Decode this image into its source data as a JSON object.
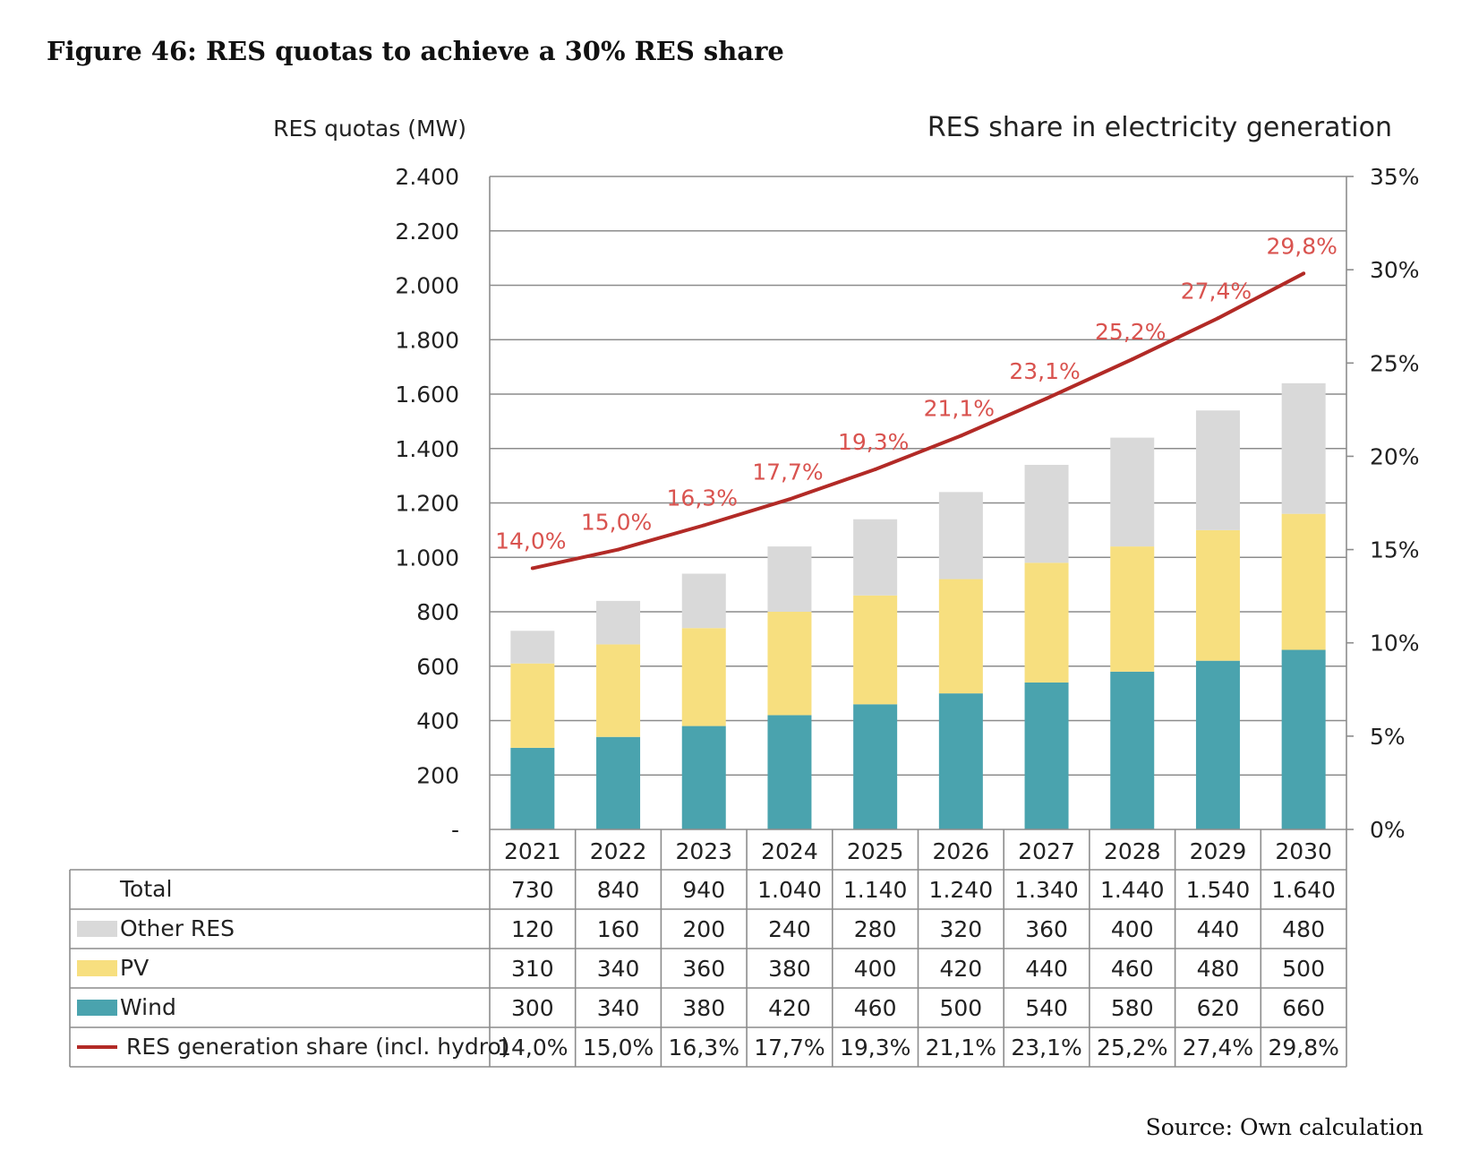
{
  "figure_title": "Figure 46: RES quotas to achieve a 30% RES share",
  "source": "Source: Own calculation",
  "chart_data": {
    "type": "bar",
    "stacked": true,
    "title": "",
    "ylabel_left": "RES quotas (MW)",
    "ylabel_right": "RES share in electricity generation",
    "categories": [
      "2021",
      "2022",
      "2023",
      "2024",
      "2025",
      "2026",
      "2027",
      "2028",
      "2029",
      "2030"
    ],
    "y_left_lim": [
      0,
      2400
    ],
    "y_left_ticks": [
      "-",
      "200",
      "400",
      "600",
      "800",
      "1.000",
      "1.200",
      "1.400",
      "1.600",
      "1.800",
      "2.000",
      "2.200",
      "2.400"
    ],
    "y_right_lim": [
      0,
      35
    ],
    "y_right_ticks": [
      "0%",
      "5%",
      "10%",
      "15%",
      "20%",
      "25%",
      "30%",
      "35%"
    ],
    "grid": true,
    "series": [
      {
        "name": "Wind",
        "kind": "bar",
        "color": "#4aa3ae",
        "values": [
          300,
          340,
          380,
          420,
          460,
          500,
          540,
          580,
          620,
          660
        ],
        "labels": [
          "300",
          "340",
          "380",
          "420",
          "460",
          "500",
          "540",
          "580",
          "620",
          "660"
        ]
      },
      {
        "name": "PV",
        "kind": "bar",
        "color": "#f7df7f",
        "values": [
          310,
          340,
          360,
          380,
          400,
          420,
          440,
          460,
          480,
          500
        ],
        "labels": [
          "310",
          "340",
          "360",
          "380",
          "400",
          "420",
          "440",
          "460",
          "480",
          "500"
        ]
      },
      {
        "name": "Other RES",
        "kind": "bar",
        "color": "#d9d9d9",
        "values": [
          120,
          160,
          200,
          240,
          280,
          320,
          360,
          400,
          440,
          480
        ],
        "labels": [
          "120",
          "160",
          "200",
          "240",
          "280",
          "320",
          "360",
          "400",
          "440",
          "480"
        ]
      },
      {
        "name": "RES generation share (incl. hydro)",
        "kind": "line",
        "axis": "right",
        "color": "#b22a26",
        "label_color": "#d9534f",
        "values": [
          14.0,
          15.0,
          16.3,
          17.7,
          19.3,
          21.1,
          23.1,
          25.2,
          27.4,
          29.8
        ],
        "labels": [
          "14,0%",
          "15,0%",
          "16,3%",
          "17,7%",
          "19,3%",
          "21,1%",
          "23,1%",
          "25,2%",
          "27,4%",
          "29,8%"
        ]
      }
    ],
    "total": {
      "name": "Total",
      "labels": [
        "730",
        "840",
        "940",
        "1.040",
        "1.140",
        "1.240",
        "1.340",
        "1.440",
        "1.540",
        "1.640"
      ]
    },
    "table_row_order": [
      "Total",
      "Other RES",
      "PV",
      "Wind",
      "RES generation share (incl. hydro)"
    ]
  }
}
